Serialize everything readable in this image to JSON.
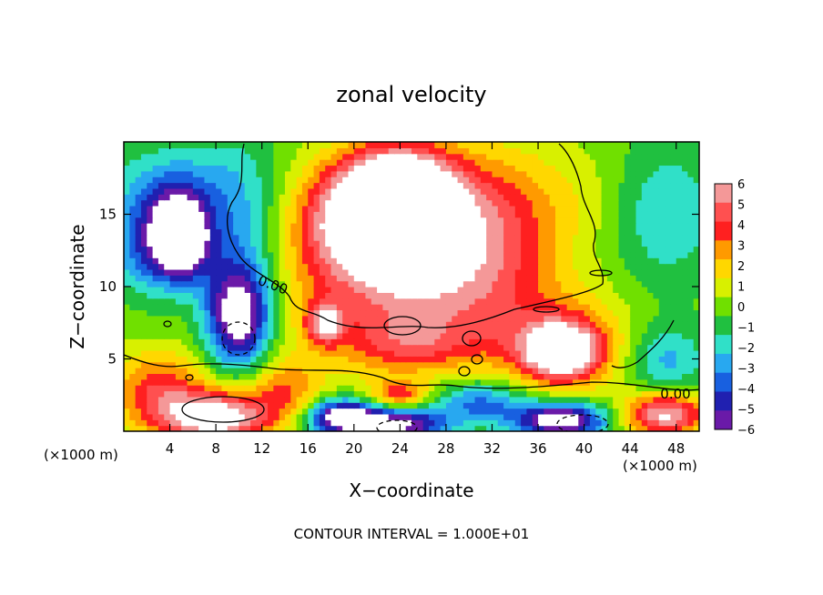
{
  "chart_data": {
    "type": "heatmap",
    "title": "zonal velocity",
    "xlabel": "X−coordinate",
    "ylabel": "Z−coordinate",
    "x_unit_left": "(×1000 m)",
    "x_unit_right": "(×1000 m)",
    "footer": "CONTOUR INTERVAL = 1.000E+01",
    "xlim": [
      0,
      50
    ],
    "ylim": [
      0,
      20
    ],
    "x_ticks": [
      4,
      8,
      12,
      16,
      20,
      24,
      28,
      32,
      36,
      40,
      44,
      48
    ],
    "y_ticks": [
      5,
      10,
      15
    ],
    "contour_labels": [
      "0.00",
      "0.00"
    ],
    "colorbar": {
      "levels": [
        6,
        5,
        4,
        3,
        2,
        1,
        0,
        -1,
        -2,
        -3,
        -4,
        -5,
        -6
      ],
      "colors": [
        "#f49898",
        "#ff5050",
        "#ff2020",
        "#ff9a00",
        "#ffd700",
        "#d8f000",
        "#70e000",
        "#20c040",
        "#30e0c8",
        "#28a8f0",
        "#1860e0",
        "#2020b0",
        "#6a1aa8"
      ]
    },
    "features": [
      {
        "x": 22,
        "y": 14.5,
        "value": 8,
        "rx": 6.5,
        "ry": 3.8
      },
      {
        "x": 24,
        "y": 17,
        "value": 7,
        "rx": 5,
        "ry": 3
      },
      {
        "x": 27,
        "y": 12.5,
        "value": 4,
        "rx": 8,
        "ry": 5
      },
      {
        "x": 20,
        "y": 9,
        "value": 2,
        "rx": 12,
        "ry": 5
      },
      {
        "x": 30,
        "y": 9,
        "value": 1.5,
        "rx": 10,
        "ry": 3.5
      },
      {
        "x": 38,
        "y": 5.5,
        "value": 7,
        "rx": 3,
        "ry": 1.8
      },
      {
        "x": 38,
        "y": 6,
        "value": 4,
        "rx": 6,
        "ry": 3
      },
      {
        "x": 17.5,
        "y": 7.5,
        "value": 5,
        "rx": 1.6,
        "ry": 1.4
      },
      {
        "x": 25,
        "y": 6,
        "value": 3,
        "rx": 6,
        "ry": 2
      },
      {
        "x": 24,
        "y": 2.5,
        "value": 4,
        "rx": 2.5,
        "ry": 1
      },
      {
        "x": 14,
        "y": 3,
        "value": 3,
        "rx": 3,
        "ry": 2
      },
      {
        "x": 8,
        "y": 1,
        "value": 8,
        "rx": 5,
        "ry": 1.8
      },
      {
        "x": 3,
        "y": 3,
        "value": 4,
        "rx": 4,
        "ry": 2.5
      },
      {
        "x": 47,
        "y": 1.2,
        "value": 7,
        "rx": 3.5,
        "ry": 1.5
      },
      {
        "x": 10,
        "y": 8,
        "value": -8,
        "rx": 2.8,
        "ry": 3.5
      },
      {
        "x": 5,
        "y": 13.5,
        "value": -8,
        "rx": 2.2,
        "ry": 2.5
      },
      {
        "x": 3,
        "y": 13,
        "value": -5,
        "rx": 4,
        "ry": 3.5
      },
      {
        "x": 4,
        "y": 17,
        "value": -2.5,
        "rx": 5,
        "ry": 3
      },
      {
        "x": 10,
        "y": 14,
        "value": -3,
        "rx": 4,
        "ry": 6
      },
      {
        "x": 19,
        "y": 1,
        "value": -8,
        "rx": 3,
        "ry": 1.2
      },
      {
        "x": 24,
        "y": 0.5,
        "value": -7,
        "rx": 4,
        "ry": 1.2
      },
      {
        "x": 31,
        "y": 2,
        "value": -4,
        "rx": 4,
        "ry": 1.5
      },
      {
        "x": 38,
        "y": 0.8,
        "value": -8,
        "rx": 4,
        "ry": 1.2
      },
      {
        "x": 47,
        "y": 15,
        "value": -2.5,
        "rx": 5,
        "ry": 5
      },
      {
        "x": 47,
        "y": 5,
        "value": -3,
        "rx": 3.5,
        "ry": 2.5
      },
      {
        "x": 40,
        "y": 16,
        "value": 1,
        "rx": 5,
        "ry": 4
      },
      {
        "x": 33,
        "y": 15,
        "value": 2.5,
        "rx": 5,
        "ry": 5
      }
    ]
  }
}
